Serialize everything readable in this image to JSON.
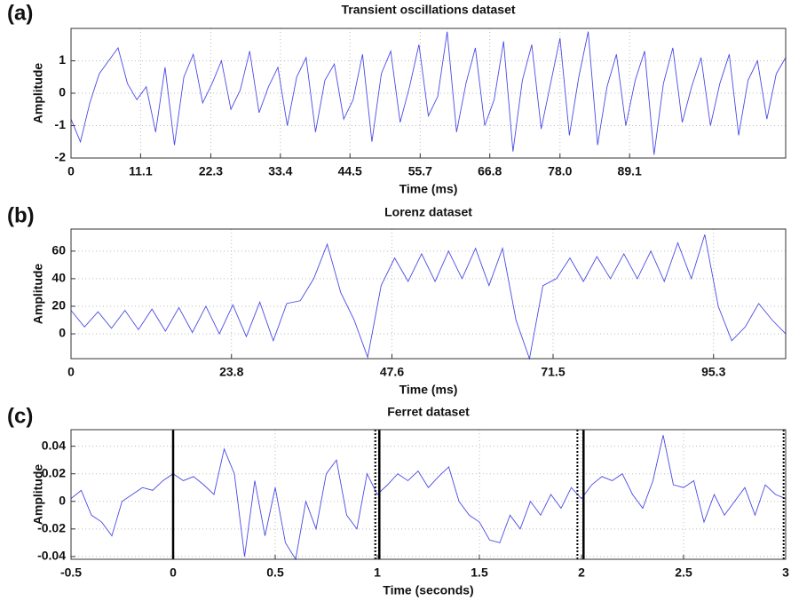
{
  "chart_data": [
    {
      "type": "line",
      "panel_label": "(a)",
      "title": "Transient oscillations dataset",
      "x_label": "Time (ms)",
      "y_label": "Amplitude",
      "color": "#4a4ae6",
      "grid": true,
      "xlim": [
        0,
        114
      ],
      "ylim": [
        -2,
        2
      ],
      "xticks": [
        0,
        11.1,
        22.3,
        33.4,
        44.5,
        55.7,
        66.8,
        {
          "value": 78,
          "label": "78.0"
        },
        89.1
      ],
      "yticks": [
        1,
        0,
        -1,
        -2
      ],
      "x": [
        0,
        1.5,
        3,
        4.5,
        6,
        7.5,
        9,
        10.5,
        12,
        13.5,
        15,
        16.5,
        18,
        19.5,
        21,
        22.5,
        24,
        25.5,
        27,
        28.5,
        30,
        31.5,
        33,
        34.5,
        36,
        37.5,
        39,
        40.5,
        42,
        43.5,
        45,
        46.5,
        48,
        49.5,
        51,
        52.5,
        54,
        55.5,
        57,
        58.5,
        60,
        61.5,
        63,
        64.5,
        66,
        67.5,
        69,
        70.5,
        72,
        73.5,
        75,
        76.5,
        78,
        79.5,
        81,
        82.5,
        84,
        85.5,
        87,
        88.5,
        90,
        91.5,
        93,
        94.5,
        96,
        97.5,
        99,
        100.5,
        102,
        103.5,
        105,
        106.5,
        108,
        109.5,
        111,
        112.5,
        114
      ],
      "values": [
        -0.8,
        -1.5,
        -0.3,
        0.6,
        1.0,
        1.4,
        0.3,
        -0.2,
        0.2,
        -1.2,
        0.8,
        -1.6,
        0.5,
        1.2,
        -0.3,
        0.3,
        1.0,
        -0.5,
        0.1,
        1.3,
        -0.6,
        0.2,
        0.8,
        -1.0,
        0.5,
        1.1,
        -1.2,
        0.4,
        0.9,
        -0.8,
        -0.2,
        1.2,
        -1.5,
        0.6,
        1.3,
        -0.9,
        0.2,
        1.5,
        -0.7,
        -0.1,
        1.9,
        -1.2,
        0.3,
        1.4,
        -1.0,
        -0.2,
        1.6,
        -1.8,
        0.4,
        1.5,
        -1.1,
        0.3,
        1.7,
        -1.3,
        0.5,
        1.9,
        -1.6,
        0.2,
        1.2,
        -1.0,
        0.4,
        1.3,
        -1.9,
        0.3,
        1.4,
        -0.9,
        0.2,
        1.1,
        -1.0,
        0.3,
        1.2,
        -1.3,
        0.4,
        1.0,
        -0.8,
        0.6,
        1.1
      ]
    },
    {
      "type": "line",
      "panel_label": "(b)",
      "title": "Lorenz dataset",
      "x_label": "Time (ms)",
      "y_label": "Amplitude",
      "color": "#4a4ae6",
      "grid": true,
      "xlim": [
        0,
        106
      ],
      "ylim": [
        -18,
        76
      ],
      "xticks": [
        0,
        23.8,
        47.6,
        71.5,
        95.3
      ],
      "yticks": [
        60,
        40,
        20,
        0
      ],
      "x": [
        0,
        2,
        4,
        6,
        8,
        10,
        12,
        14,
        16,
        18,
        20,
        22,
        24,
        26,
        28,
        30,
        32,
        34,
        36,
        38,
        40,
        42,
        44,
        46,
        48,
        50,
        52,
        54,
        56,
        58,
        60,
        62,
        64,
        66,
        68,
        70,
        72,
        74,
        76,
        78,
        80,
        82,
        84,
        86,
        88,
        90,
        92,
        94,
        96,
        98,
        100,
        102,
        104,
        106
      ],
      "values": [
        17,
        5,
        16,
        4,
        17,
        3,
        18,
        2,
        19,
        1,
        20,
        0,
        21,
        -2,
        23,
        -5,
        22,
        24,
        40,
        65,
        30,
        10,
        -17,
        35,
        55,
        38,
        58,
        38,
        60,
        40,
        62,
        35,
        62,
        10,
        -18,
        35,
        40,
        55,
        38,
        56,
        40,
        58,
        40,
        60,
        38,
        66,
        40,
        72,
        20,
        -5,
        5,
        22,
        10,
        0
      ]
    },
    {
      "type": "line",
      "panel_label": "(c)",
      "title": "Ferret dataset",
      "x_label": "Time (seconds)",
      "y_label": "Amplitude",
      "color": "#4a4ae6",
      "grid": true,
      "xlim": [
        -0.5,
        3
      ],
      "ylim": [
        -0.042,
        0.052
      ],
      "xticks": [
        -0.5,
        0,
        0.5,
        1,
        1.5,
        2,
        2.5,
        3
      ],
      "yticks": [
        0.04,
        0.02,
        0,
        -0.02,
        -0.04
      ],
      "vlines": [
        {
          "value": 0,
          "style": "solid"
        },
        {
          "value": 0.99,
          "style": "dotted"
        },
        {
          "value": 1.01,
          "style": "solid"
        },
        {
          "value": 1.98,
          "style": "dotted"
        },
        {
          "value": 2.01,
          "style": "solid"
        },
        {
          "value": 2.99,
          "style": "dotted"
        }
      ],
      "x": [
        -0.5,
        -0.45,
        -0.4,
        -0.35,
        -0.3,
        -0.25,
        -0.2,
        -0.15,
        -0.1,
        -0.05,
        0,
        0.05,
        0.1,
        0.15,
        0.2,
        0.25,
        0.3,
        0.35,
        0.4,
        0.45,
        0.5,
        0.55,
        0.6,
        0.65,
        0.7,
        0.75,
        0.8,
        0.85,
        0.9,
        0.95,
        1,
        1.05,
        1.1,
        1.15,
        1.2,
        1.25,
        1.3,
        1.35,
        1.4,
        1.45,
        1.5,
        1.55,
        1.6,
        1.65,
        1.7,
        1.75,
        1.8,
        1.85,
        1.9,
        1.95,
        2,
        2.05,
        2.1,
        2.15,
        2.2,
        2.25,
        2.3,
        2.35,
        2.4,
        2.45,
        2.5,
        2.55,
        2.6,
        2.65,
        2.7,
        2.75,
        2.8,
        2.85,
        2.9,
        2.95,
        3
      ],
      "values": [
        0.002,
        0.008,
        -0.01,
        -0.015,
        -0.025,
        0,
        0.005,
        0.01,
        0.008,
        0.015,
        0.02,
        0.015,
        0.018,
        0.012,
        0.005,
        0.038,
        0.02,
        -0.04,
        0.015,
        -0.025,
        0.01,
        -0.03,
        -0.042,
        0,
        -0.02,
        0.02,
        0.03,
        -0.01,
        -0.02,
        0.02,
        0.005,
        0.012,
        0.02,
        0.015,
        0.022,
        0.01,
        0.018,
        0.025,
        0,
        -0.01,
        -0.015,
        -0.028,
        -0.03,
        -0.01,
        -0.02,
        0,
        -0.01,
        0.005,
        -0.005,
        0.01,
        0.002,
        0.012,
        0.018,
        0.015,
        0.02,
        0.005,
        -0.005,
        0.015,
        0.048,
        0.012,
        0.01,
        0.015,
        -0.015,
        0.005,
        -0.01,
        0,
        0.01,
        -0.01,
        0.012,
        0.005,
        0.002
      ]
    }
  ]
}
